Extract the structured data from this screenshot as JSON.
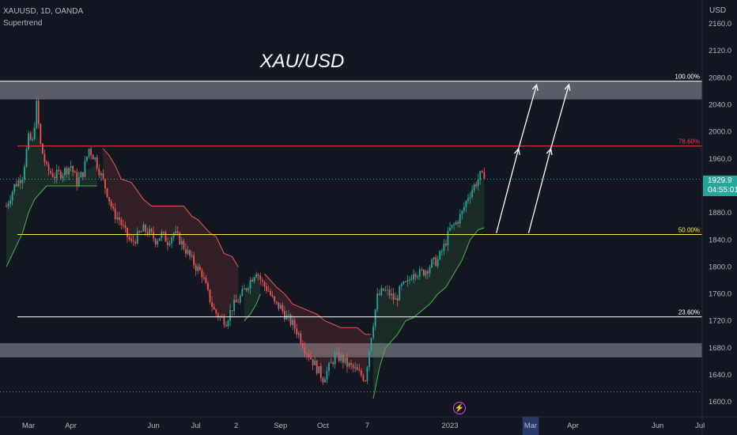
{
  "header": {
    "symbol_line": "XAUUSD, 1D, OANDA",
    "indicator": "Supertrend",
    "currency": "USD"
  },
  "price_tag": {
    "price": "1929.9",
    "countdown": "04:55:01"
  },
  "colors": {
    "background": "#131722",
    "up": "#26a69a",
    "down": "#ef5350",
    "supertrend_up": "#4caf50",
    "supertrend_down": "#ef5350",
    "zone": "#9598a1",
    "fib_100": "#ffffff",
    "fib_786": "#f23645",
    "fib_50": "#ffeb3b",
    "fib_236": "#ffffff",
    "arrow": "#ffffff",
    "axis_text": "#b2b5be"
  },
  "icons": {
    "bolt": "lightning-icon"
  },
  "chart_data": {
    "type": "candlestick",
    "title": "XAU/USD",
    "symbol": "XAUUSD",
    "timeframe": "1D",
    "source": "OANDA",
    "ylim": [
      1585,
      2180
    ],
    "y_ticks": [
      1600,
      1640,
      1680,
      1720,
      1760,
      1800,
      1840,
      1880,
      1920,
      1960,
      2000,
      2040,
      2080,
      2120,
      2160
    ],
    "y_tick_labels": [
      "1600.0",
      "1640.0",
      "1680.0",
      "1720.0",
      "1760.0",
      "1800.0",
      "1840.0",
      "1880.0",
      "1920.0",
      "1960.0",
      "2000.0",
      "2040.0",
      "2080.0",
      "2120.0",
      "2160.0"
    ],
    "x_ticks": [
      {
        "label": "Mar",
        "i": 11
      },
      {
        "label": "Apr",
        "i": 32
      },
      {
        "label": "Jun",
        "i": 73
      },
      {
        "label": "Jul",
        "i": 94
      },
      {
        "label": "2",
        "i": 114
      },
      {
        "label": "Sep",
        "i": 136
      },
      {
        "label": "Oct",
        "i": 157
      },
      {
        "label": "7",
        "i": 179
      },
      {
        "label": "2023",
        "i": 220
      },
      {
        "label": "Mar",
        "i": 260
      },
      {
        "label": "Apr",
        "i": 281
      },
      {
        "label": "Jun",
        "i": 323
      },
      {
        "label": "Jul",
        "i": 344
      }
    ],
    "x_highlight": {
      "from": 256,
      "to": 264
    },
    "x_count": 356,
    "last_price": 1929.9,
    "anchors": [
      [
        0,
        1890
      ],
      [
        4,
        1920
      ],
      [
        8,
        1935
      ],
      [
        11,
        1990
      ],
      [
        13,
        1985
      ],
      [
        15,
        2040
      ],
      [
        17,
        1980
      ],
      [
        20,
        1945
      ],
      [
        24,
        1935
      ],
      [
        28,
        1940
      ],
      [
        32,
        1950
      ],
      [
        35,
        1925
      ],
      [
        38,
        1940
      ],
      [
        41,
        1975
      ],
      [
        44,
        1960
      ],
      [
        47,
        1935
      ],
      [
        50,
        1910
      ],
      [
        53,
        1880
      ],
      [
        56,
        1870
      ],
      [
        59,
        1850
      ],
      [
        62,
        1835
      ],
      [
        65,
        1845
      ],
      [
        68,
        1855
      ],
      [
        71,
        1850
      ],
      [
        74,
        1840
      ],
      [
        77,
        1848
      ],
      [
        80,
        1838
      ],
      [
        83,
        1850
      ],
      [
        86,
        1840
      ],
      [
        88,
        1830
      ],
      [
        91,
        1815
      ],
      [
        94,
        1800
      ],
      [
        97,
        1790
      ],
      [
        100,
        1760
      ],
      [
        103,
        1735
      ],
      [
        106,
        1725
      ],
      [
        109,
        1720
      ],
      [
        112,
        1740
      ],
      [
        115,
        1750
      ],
      [
        118,
        1765
      ],
      [
        121,
        1780
      ],
      [
        124,
        1795
      ],
      [
        127,
        1775
      ],
      [
        130,
        1765
      ],
      [
        133,
        1745
      ],
      [
        136,
        1740
      ],
      [
        139,
        1725
      ],
      [
        142,
        1715
      ],
      [
        145,
        1700
      ],
      [
        148,
        1680
      ],
      [
        151,
        1665
      ],
      [
        154,
        1650
      ],
      [
        157,
        1635
      ],
      [
        160,
        1650
      ],
      [
        163,
        1668
      ],
      [
        166,
        1665
      ],
      [
        169,
        1655
      ],
      [
        172,
        1650
      ],
      [
        175,
        1642
      ],
      [
        178,
        1635
      ],
      [
        181,
        1700
      ],
      [
        184,
        1755
      ],
      [
        187,
        1765
      ],
      [
        190,
        1760
      ],
      [
        193,
        1750
      ],
      [
        196,
        1770
      ],
      [
        199,
        1775
      ],
      [
        202,
        1795
      ],
      [
        205,
        1790
      ],
      [
        208,
        1795
      ],
      [
        211,
        1805
      ],
      [
        214,
        1810
      ],
      [
        217,
        1830
      ],
      [
        220,
        1855
      ],
      [
        223,
        1865
      ],
      [
        226,
        1880
      ],
      [
        229,
        1905
      ],
      [
        232,
        1920
      ],
      [
        235,
        1935
      ],
      [
        237,
        1930
      ]
    ],
    "supertrend": [
      {
        "trend": "up",
        "points": [
          [
            0,
            1800
          ],
          [
            4,
            1825
          ],
          [
            8,
            1850
          ],
          [
            11,
            1880
          ],
          [
            14,
            1900
          ],
          [
            17,
            1910
          ],
          [
            20,
            1920
          ],
          [
            24,
            1920
          ],
          [
            30,
            1920
          ],
          [
            38,
            1920
          ],
          [
            45,
            1920
          ]
        ]
      },
      {
        "trend": "down",
        "points": [
          [
            48,
            1975
          ],
          [
            51,
            1965
          ],
          [
            54,
            1950
          ],
          [
            57,
            1930
          ],
          [
            62,
            1925
          ],
          [
            68,
            1900
          ],
          [
            72,
            1890
          ],
          [
            76,
            1890
          ],
          [
            80,
            1890
          ],
          [
            84,
            1890
          ],
          [
            88,
            1890
          ],
          [
            92,
            1875
          ],
          [
            95,
            1870
          ],
          [
            98,
            1860
          ],
          [
            101,
            1850
          ],
          [
            104,
            1845
          ],
          [
            108,
            1820
          ],
          [
            112,
            1815
          ],
          [
            115,
            1800
          ]
        ]
      },
      {
        "trend": "up",
        "points": [
          [
            118,
            1720
          ],
          [
            121,
            1730
          ],
          [
            124,
            1745
          ],
          [
            126,
            1760
          ]
        ]
      },
      {
        "trend": "down",
        "points": [
          [
            128,
            1790
          ],
          [
            131,
            1780
          ],
          [
            134,
            1770
          ],
          [
            138,
            1760
          ],
          [
            142,
            1745
          ],
          [
            146,
            1740
          ],
          [
            150,
            1735
          ],
          [
            154,
            1730
          ],
          [
            158,
            1720
          ],
          [
            162,
            1715
          ],
          [
            166,
            1710
          ],
          [
            170,
            1710
          ],
          [
            174,
            1710
          ],
          [
            178,
            1700
          ],
          [
            181,
            1700
          ]
        ]
      },
      {
        "trend": "up",
        "points": [
          [
            182,
            1605
          ],
          [
            185,
            1650
          ],
          [
            188,
            1680
          ],
          [
            191,
            1690
          ],
          [
            194,
            1700
          ],
          [
            198,
            1720
          ],
          [
            202,
            1725
          ],
          [
            206,
            1735
          ],
          [
            210,
            1745
          ],
          [
            214,
            1760
          ],
          [
            218,
            1770
          ],
          [
            222,
            1790
          ],
          [
            226,
            1810
          ],
          [
            230,
            1840
          ],
          [
            234,
            1855
          ],
          [
            237,
            1858
          ]
        ]
      }
    ],
    "zones": [
      {
        "name": "upper-resistance-zone",
        "from": 2048,
        "to": 2075
      },
      {
        "name": "lower-support-zone",
        "from": 1666,
        "to": 1687
      }
    ],
    "fib_levels": [
      {
        "label": "100.00%",
        "price": 2075,
        "color": "#ffffff"
      },
      {
        "label": "78.60%",
        "price": 1979,
        "color": "#f23645"
      },
      {
        "label": "50.00%",
        "price": 1848,
        "color": "#ffeb3b"
      },
      {
        "label": "23.60%",
        "price": 1726,
        "color": "#ffffff"
      }
    ],
    "dotted_levels": [
      1929.9,
      1615
    ],
    "arrows": [
      {
        "from": [
          243,
          1850
        ],
        "to": [
          254,
          1975
        ]
      },
      {
        "from": [
          254,
          1975
        ],
        "to": [
          263,
          2070
        ]
      },
      {
        "from": [
          259,
          1850
        ],
        "to": [
          270,
          1975
        ]
      },
      {
        "from": [
          270,
          1975
        ],
        "to": [
          279,
          2070
        ]
      }
    ]
  }
}
